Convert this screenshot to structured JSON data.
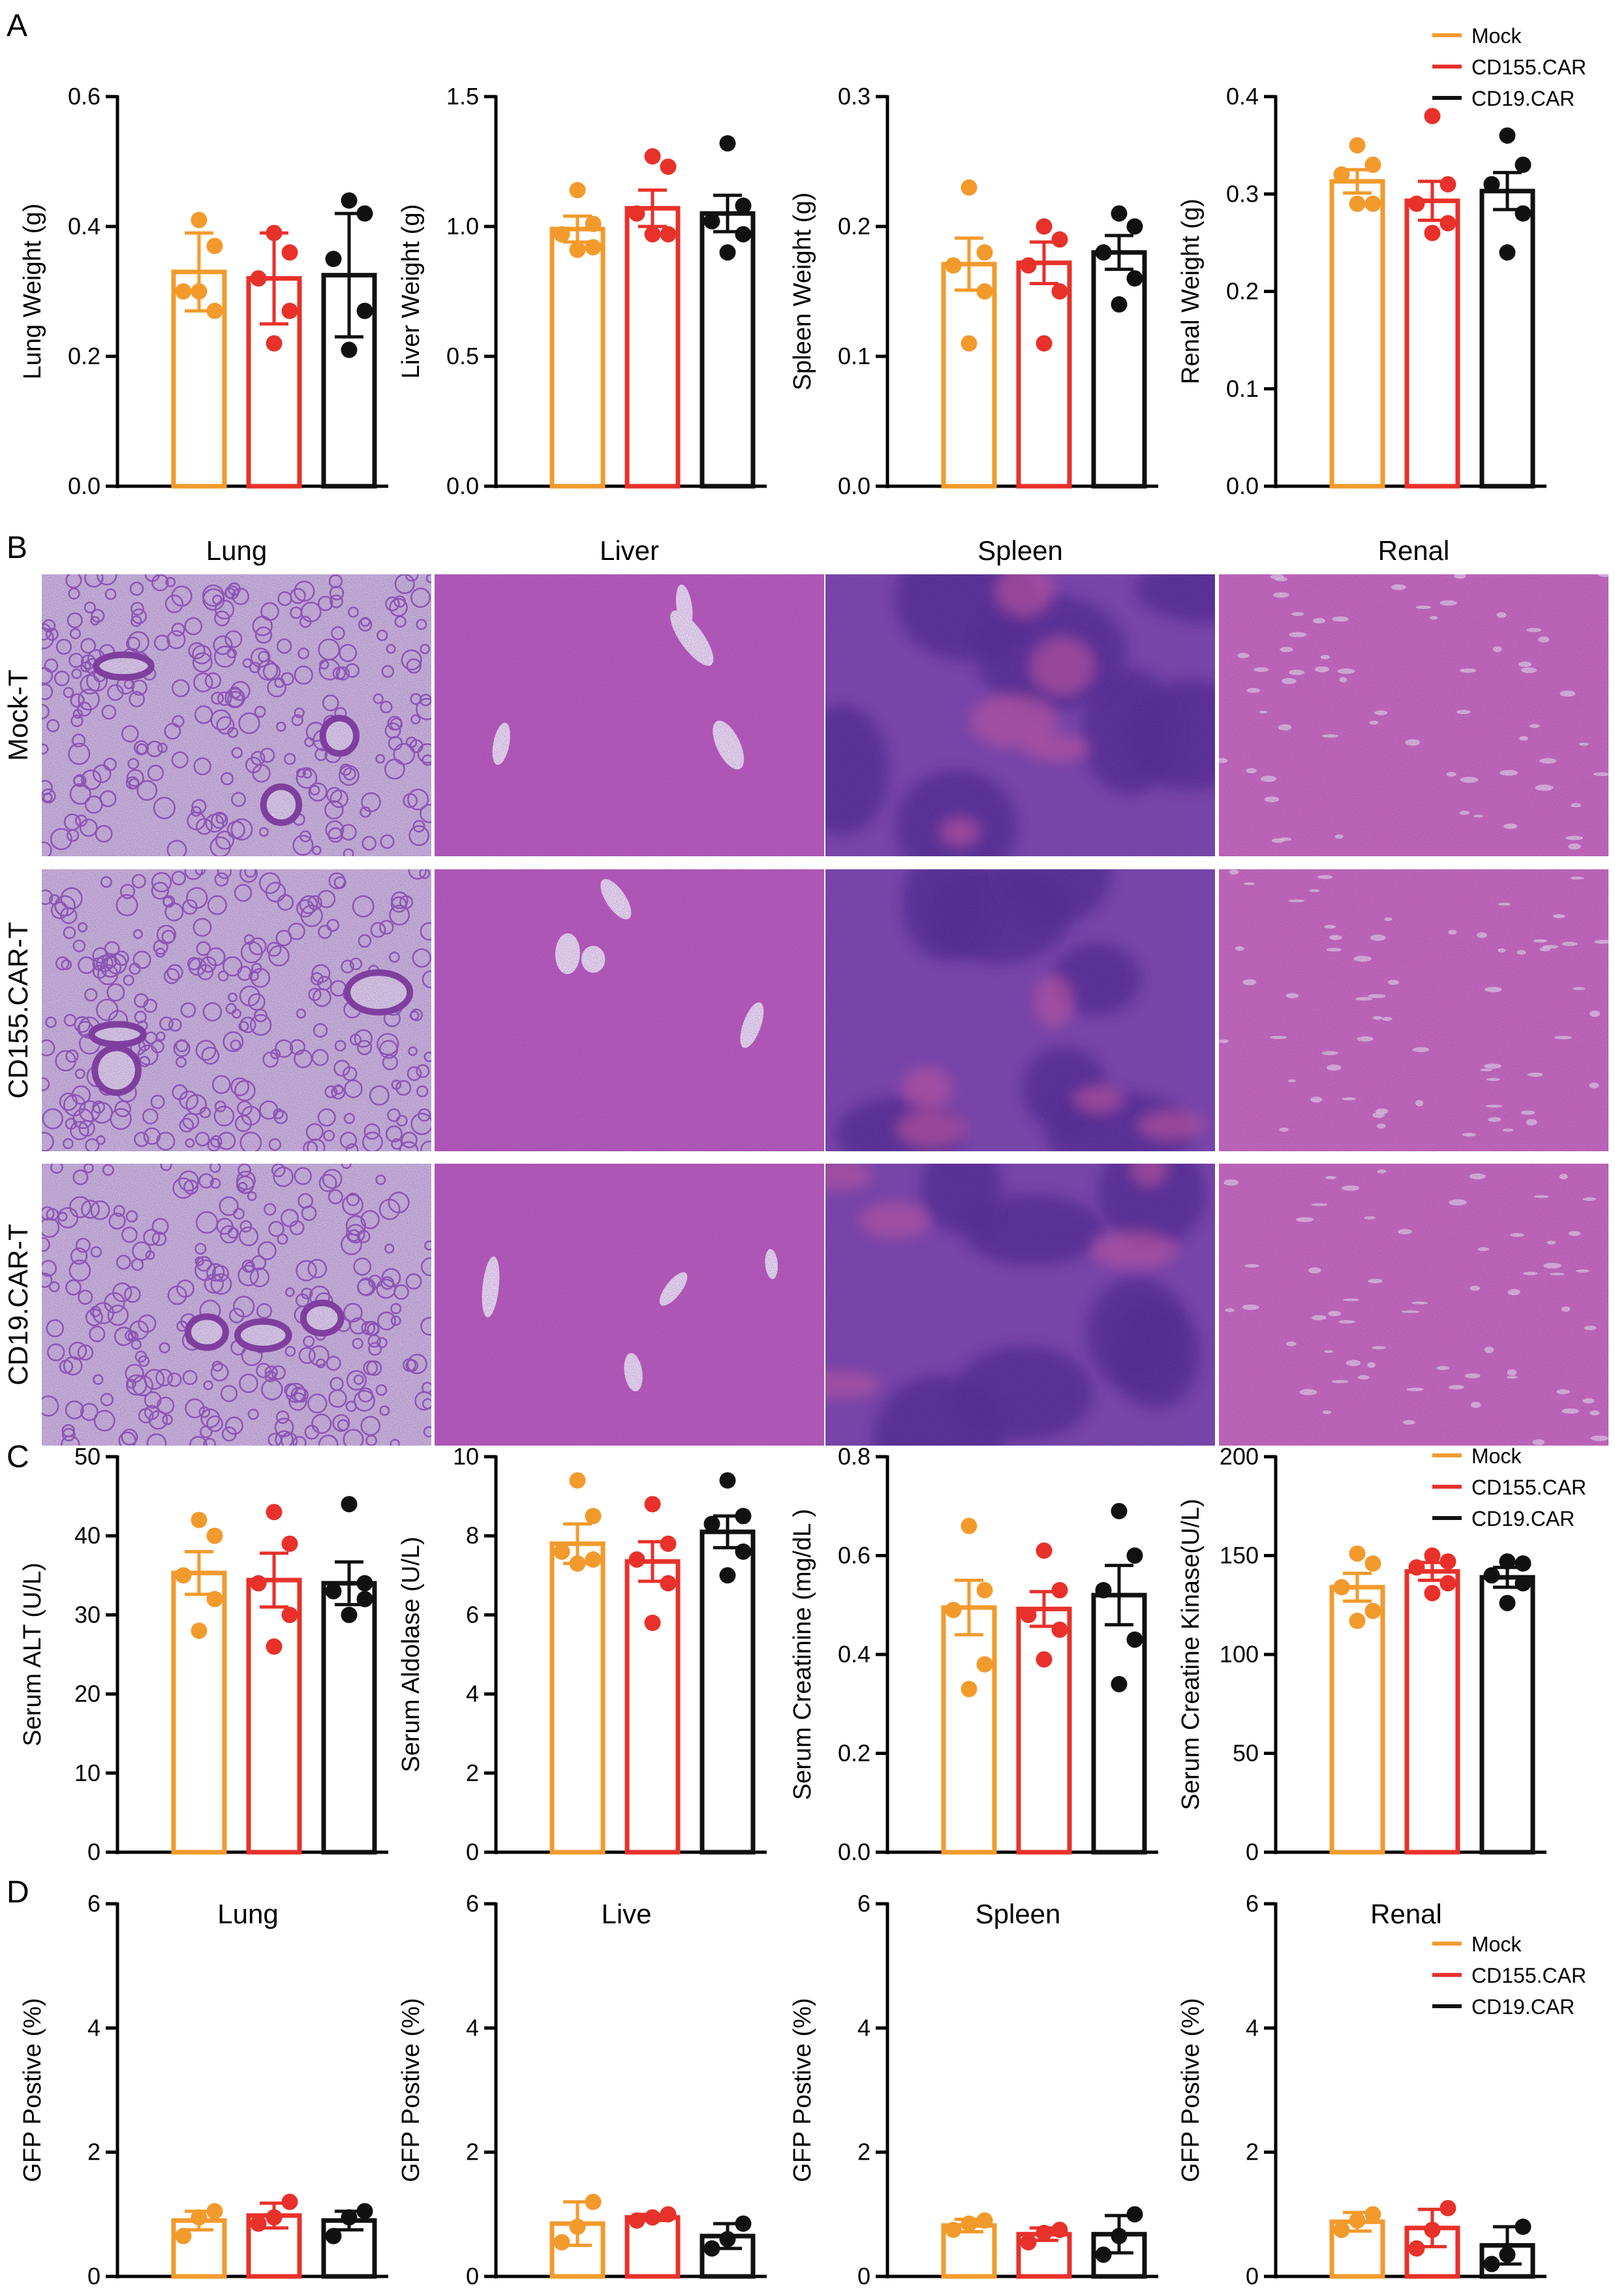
{
  "colors": {
    "Mock": "#F39A2C",
    "CD155.CAR": "#E8312A",
    "CD19.CAR": "#111111"
  },
  "panel_labels": [
    "A",
    "B",
    "C",
    "D"
  ],
  "legend": [
    "Mock",
    "CD155.CAR",
    "CD19.CAR"
  ],
  "histology": {
    "columns": [
      "Lung",
      "Liver",
      "Spleen",
      "Renal"
    ],
    "rows": [
      "Mock-T",
      "CD155.CAR-T",
      "CD19.CAR-T"
    ]
  },
  "chart_data": [
    {
      "panel": "A",
      "type": "bar",
      "ylabel": "Lung Weight (g)",
      "ylim": [
        0,
        0.6
      ],
      "ticks": [
        0.0,
        0.2,
        0.4,
        0.6
      ],
      "tick_labels": [
        "0.0",
        "0.2",
        "0.4",
        "0.6"
      ],
      "series": [
        {
          "name": "Mock",
          "mean": 0.33,
          "sem": 0.06,
          "points": [
            0.41,
            0.37,
            0.3,
            0.27,
            0.3
          ]
        },
        {
          "name": "CD155.CAR",
          "mean": 0.32,
          "sem": 0.07,
          "points": [
            0.39,
            0.36,
            0.32,
            0.27,
            0.22
          ]
        },
        {
          "name": "CD19.CAR",
          "mean": 0.325,
          "sem": 0.095,
          "points": [
            0.44,
            0.42,
            0.35,
            0.27,
            0.21
          ]
        }
      ]
    },
    {
      "panel": "A",
      "type": "bar",
      "ylabel": "Liver Weight (g)",
      "ylim": [
        0,
        1.5
      ],
      "ticks": [
        0.0,
        0.5,
        1.0,
        1.5
      ],
      "tick_labels": [
        "0.0",
        "0.5",
        "1.0",
        "1.5"
      ],
      "series": [
        {
          "name": "Mock",
          "mean": 0.99,
          "sem": 0.05,
          "points": [
            1.14,
            1.01,
            0.97,
            0.92,
            0.91
          ]
        },
        {
          "name": "CD155.CAR",
          "mean": 1.07,
          "sem": 0.07,
          "points": [
            1.27,
            1.23,
            1.05,
            0.97,
            0.97
          ]
        },
        {
          "name": "CD19.CAR",
          "mean": 1.05,
          "sem": 0.07,
          "points": [
            1.32,
            1.08,
            1.02,
            0.97,
            0.9
          ]
        }
      ]
    },
    {
      "panel": "A",
      "type": "bar",
      "ylabel": "Spleen Weight (g)",
      "ylim": [
        0,
        0.3
      ],
      "ticks": [
        0.0,
        0.1,
        0.2,
        0.3
      ],
      "tick_labels": [
        "0.0",
        "0.1",
        "0.2",
        "0.3"
      ],
      "series": [
        {
          "name": "Mock",
          "mean": 0.171,
          "sem": 0.02,
          "points": [
            0.23,
            0.18,
            0.17,
            0.15,
            0.11
          ]
        },
        {
          "name": "CD155.CAR",
          "mean": 0.172,
          "sem": 0.016,
          "points": [
            0.2,
            0.19,
            0.17,
            0.15,
            0.11
          ]
        },
        {
          "name": "CD19.CAR",
          "mean": 0.18,
          "sem": 0.013,
          "points": [
            0.21,
            0.2,
            0.18,
            0.16,
            0.14
          ]
        }
      ]
    },
    {
      "panel": "A",
      "type": "bar",
      "ylabel": "Renal Weight (g)",
      "ylim": [
        0,
        0.4
      ],
      "ticks": [
        0.0,
        0.1,
        0.2,
        0.3,
        0.4
      ],
      "tick_labels": [
        "0.0",
        "0.1",
        "0.2",
        "0.3",
        "0.4"
      ],
      "series": [
        {
          "name": "Mock",
          "mean": 0.313,
          "sem": 0.012,
          "points": [
            0.35,
            0.33,
            0.32,
            0.29,
            0.29
          ]
        },
        {
          "name": "CD155.CAR",
          "mean": 0.293,
          "sem": 0.02,
          "points": [
            0.38,
            0.31,
            0.29,
            0.27,
            0.26
          ]
        },
        {
          "name": "CD19.CAR",
          "mean": 0.303,
          "sem": 0.019,
          "points": [
            0.36,
            0.33,
            0.31,
            0.28,
            0.24
          ]
        }
      ]
    },
    {
      "panel": "C",
      "type": "bar",
      "ylabel": "Serum ALT (U/L)",
      "ylim": [
        0,
        50
      ],
      "ticks": [
        0,
        10,
        20,
        30,
        40,
        50
      ],
      "tick_labels": [
        "0",
        "10",
        "20",
        "30",
        "40",
        "50"
      ],
      "series": [
        {
          "name": "Mock",
          "mean": 35.3,
          "sem": 2.7,
          "points": [
            42,
            40,
            35,
            32,
            28
          ]
        },
        {
          "name": "CD155.CAR",
          "mean": 34.4,
          "sem": 3.4,
          "points": [
            43,
            39,
            34,
            30,
            26
          ]
        },
        {
          "name": "CD19.CAR",
          "mean": 34,
          "sem": 2.7,
          "points": [
            44,
            34,
            33,
            32,
            30
          ]
        }
      ]
    },
    {
      "panel": "C",
      "type": "bar",
      "ylabel": "Serum Aldolase (U/L)",
      "ylim": [
        0,
        10
      ],
      "ticks": [
        0,
        2,
        4,
        6,
        8,
        10
      ],
      "tick_labels": [
        "0",
        "2",
        "4",
        "6",
        "8",
        "10"
      ],
      "series": [
        {
          "name": "Mock",
          "mean": 7.8,
          "sem": 0.5,
          "points": [
            9.4,
            8.5,
            7.6,
            7.4,
            7.3
          ]
        },
        {
          "name": "CD155.CAR",
          "mean": 7.35,
          "sem": 0.5,
          "points": [
            8.8,
            7.8,
            7.4,
            6.8,
            5.8
          ]
        },
        {
          "name": "CD19.CAR",
          "mean": 8.1,
          "sem": 0.4,
          "points": [
            9.4,
            8.5,
            8.3,
            7.6,
            7.0
          ]
        }
      ]
    },
    {
      "panel": "C",
      "type": "bar",
      "ylabel": "Serum Creatinine (mg/dL )",
      "ylim": [
        0,
        0.8
      ],
      "ticks": [
        0.0,
        0.2,
        0.4,
        0.6,
        0.8
      ],
      "tick_labels": [
        "0.0",
        "0.2",
        "0.4",
        "0.6",
        "0.8"
      ],
      "series": [
        {
          "name": "Mock",
          "mean": 0.495,
          "sem": 0.055,
          "points": [
            0.66,
            0.53,
            0.49,
            0.38,
            0.33
          ]
        },
        {
          "name": "CD155.CAR",
          "mean": 0.492,
          "sem": 0.035,
          "points": [
            0.61,
            0.53,
            0.48,
            0.45,
            0.39
          ]
        },
        {
          "name": "CD19.CAR",
          "mean": 0.52,
          "sem": 0.06,
          "points": [
            0.69,
            0.6,
            0.53,
            0.43,
            0.34
          ]
        }
      ]
    },
    {
      "panel": "C",
      "type": "bar",
      "ylabel": "Serum Creatine Kinase(U/L)",
      "ylim": [
        0,
        200
      ],
      "ticks": [
        0,
        50,
        100,
        150,
        200
      ],
      "tick_labels": [
        "0",
        "50",
        "100",
        "150",
        "200"
      ],
      "series": [
        {
          "name": "Mock",
          "mean": 134,
          "sem": 7,
          "points": [
            151,
            146,
            134,
            122,
            117
          ]
        },
        {
          "name": "CD155.CAR",
          "mean": 142,
          "sem": 4.5,
          "points": [
            150,
            147,
            144,
            136,
            131
          ]
        },
        {
          "name": "CD19.CAR",
          "mean": 139,
          "sem": 5,
          "points": [
            147,
            146,
            140,
            136,
            126
          ]
        }
      ]
    },
    {
      "panel": "D",
      "type": "bar",
      "title": "Lung",
      "ylabel": "GFP Postive (%)",
      "ylim": [
        0,
        6
      ],
      "ticks": [
        0,
        2,
        4,
        6
      ],
      "tick_labels": [
        "0",
        "2",
        "4",
        "6"
      ],
      "series": [
        {
          "name": "Mock",
          "mean": 0.9,
          "sem": 0.15,
          "points": [
            1.05,
            0.95,
            0.65
          ]
        },
        {
          "name": "CD155.CAR",
          "mean": 0.98,
          "sem": 0.2,
          "points": [
            1.2,
            0.95,
            0.85
          ]
        },
        {
          "name": "CD19.CAR",
          "mean": 0.9,
          "sem": 0.15,
          "points": [
            1.05,
            0.95,
            0.65
          ]
        }
      ]
    },
    {
      "panel": "D",
      "type": "bar",
      "title": "Live",
      "ylabel": "GFP Postive (%)",
      "ylim": [
        0,
        6
      ],
      "ticks": [
        0,
        2,
        4,
        6
      ],
      "tick_labels": [
        "0",
        "2",
        "4",
        "6"
      ],
      "series": [
        {
          "name": "Mock",
          "mean": 0.85,
          "sem": 0.35,
          "points": [
            1.2,
            0.8,
            0.55
          ]
        },
        {
          "name": "CD155.CAR",
          "mean": 0.95,
          "sem": 0.05,
          "points": [
            1.0,
            0.95,
            0.9
          ]
        },
        {
          "name": "CD19.CAR",
          "mean": 0.65,
          "sem": 0.2,
          "points": [
            0.85,
            0.6,
            0.45
          ]
        }
      ]
    },
    {
      "panel": "D",
      "type": "bar",
      "title": "Spleen",
      "ylabel": "GFP Postive (%)",
      "ylim": [
        0,
        6
      ],
      "ticks": [
        0,
        2,
        4,
        6
      ],
      "tick_labels": [
        "0",
        "2",
        "4",
        "6"
      ],
      "series": [
        {
          "name": "Mock",
          "mean": 0.82,
          "sem": 0.1,
          "points": [
            0.9,
            0.85,
            0.75
          ]
        },
        {
          "name": "CD155.CAR",
          "mean": 0.68,
          "sem": 0.1,
          "points": [
            0.75,
            0.7,
            0.55
          ]
        },
        {
          "name": "CD19.CAR",
          "mean": 0.68,
          "sem": 0.3,
          "points": [
            1.0,
            0.65,
            0.35
          ]
        }
      ]
    },
    {
      "panel": "D",
      "type": "bar",
      "title": "Renal",
      "ylabel": "GFP Postive (%)",
      "ylim": [
        0,
        6
      ],
      "ticks": [
        0,
        2,
        4,
        6
      ],
      "tick_labels": [
        "0",
        "2",
        "4",
        "6"
      ],
      "series": [
        {
          "name": "Mock",
          "mean": 0.88,
          "sem": 0.15,
          "points": [
            1.0,
            0.9,
            0.75
          ]
        },
        {
          "name": "CD155.CAR",
          "mean": 0.78,
          "sem": 0.3,
          "points": [
            1.1,
            0.75,
            0.45
          ]
        },
        {
          "name": "CD19.CAR",
          "mean": 0.5,
          "sem": 0.3,
          "points": [
            0.8,
            0.35,
            0.2
          ]
        }
      ]
    }
  ]
}
